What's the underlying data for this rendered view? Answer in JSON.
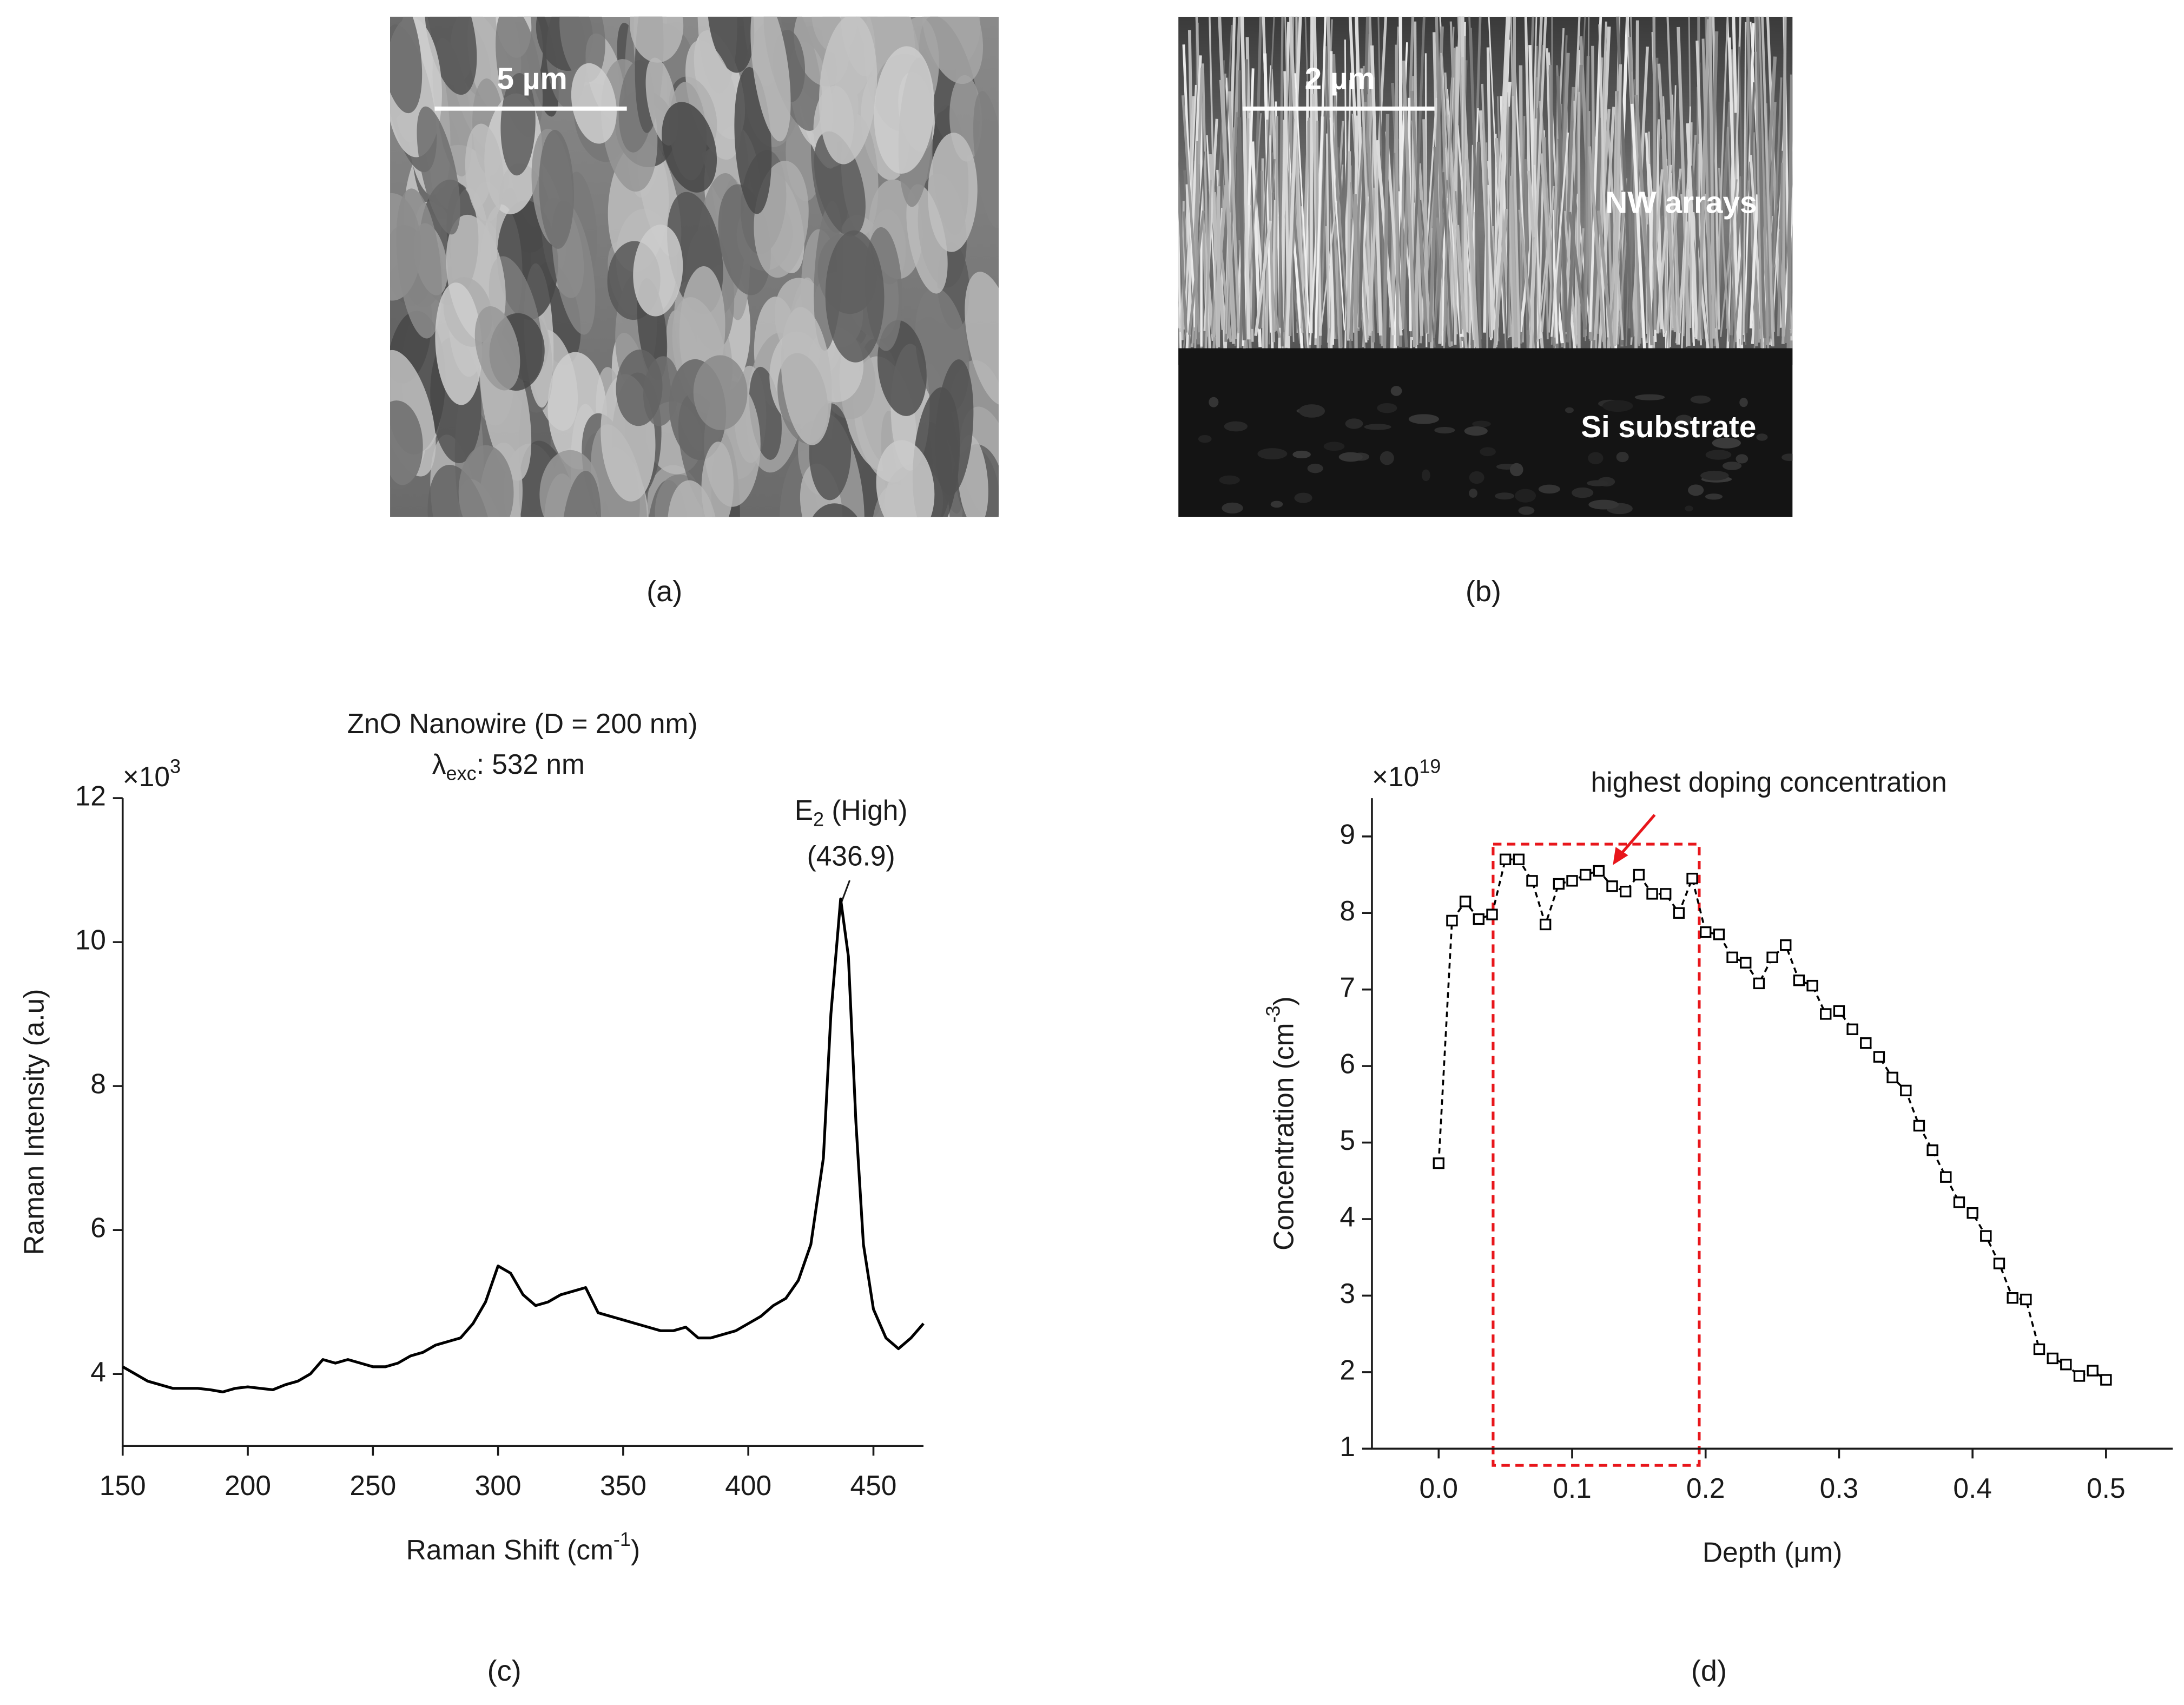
{
  "panels": [
    {
      "label": "(a)",
      "scale_bar": "5 µm"
    },
    {
      "label": "(b)",
      "scale_bar": "2 µm",
      "regions": [
        "NW arrays",
        "Si substrate"
      ]
    },
    {
      "label": "(c)"
    },
    {
      "label": "(d)"
    }
  ],
  "chart_data": [
    {
      "type": "line",
      "title": "ZnO Nanowire (D = 200 nm)",
      "subtitle": [
        "λ",
        "exc",
        ": 532 nm"
      ],
      "x_label": [
        "Raman Shift (cm",
        "-1",
        ")"
      ],
      "y_label": "Raman Intensity (a.u)",
      "y_multiplier": [
        "×10",
        "3"
      ],
      "annotation": {
        "text": [
          "E",
          "2",
          " (High)"
        ],
        "value_label": "(436.9)"
      },
      "color": "#000000",
      "x": [
        150,
        155,
        160,
        165,
        170,
        175,
        180,
        185,
        190,
        195,
        200,
        205,
        210,
        215,
        220,
        225,
        230,
        235,
        240,
        245,
        250,
        255,
        260,
        265,
        270,
        275,
        280,
        285,
        290,
        295,
        300,
        305,
        310,
        315,
        320,
        325,
        330,
        335,
        340,
        345,
        350,
        355,
        360,
        365,
        370,
        375,
        380,
        385,
        390,
        395,
        400,
        405,
        410,
        415,
        420,
        425,
        430,
        433,
        436.9,
        440,
        443,
        446,
        450,
        455,
        460,
        465,
        470
      ],
      "values": [
        4.1,
        4.0,
        3.9,
        3.85,
        3.8,
        3.8,
        3.8,
        3.78,
        3.75,
        3.8,
        3.82,
        3.8,
        3.78,
        3.85,
        3.9,
        4.0,
        4.2,
        4.15,
        4.2,
        4.15,
        4.1,
        4.1,
        4.15,
        4.25,
        4.3,
        4.4,
        4.45,
        4.5,
        4.7,
        5.0,
        5.5,
        5.4,
        5.1,
        4.95,
        5.0,
        5.1,
        5.15,
        5.2,
        4.85,
        4.8,
        4.75,
        4.7,
        4.65,
        4.6,
        4.6,
        4.65,
        4.5,
        4.5,
        4.55,
        4.6,
        4.7,
        4.8,
        4.95,
        5.05,
        5.3,
        5.8,
        7.0,
        9.0,
        10.6,
        9.8,
        7.5,
        5.8,
        4.9,
        4.5,
        4.35,
        4.5,
        4.7
      ],
      "xlim": [
        150,
        470
      ],
      "ylim": [
        3,
        12
      ],
      "xticks": [
        150,
        200,
        250,
        300,
        350,
        400,
        450
      ],
      "yticks": [
        4,
        6,
        8,
        10,
        12
      ]
    },
    {
      "type": "line",
      "marker": "square",
      "linestyle": "dashed",
      "x_label": "Depth (μm)",
      "y_label": [
        "Concentration (cm",
        "-3",
        ")"
      ],
      "y_multiplier": [
        "×10",
        "19"
      ],
      "annotation": "highest doping concentration",
      "color": "#000000",
      "highlight_color": "#e8161b",
      "x": [
        0,
        0.01,
        0.02,
        0.03,
        0.04,
        0.05,
        0.06,
        0.07,
        0.08,
        0.09,
        0.1,
        0.11,
        0.12,
        0.13,
        0.14,
        0.15,
        0.16,
        0.17,
        0.18,
        0.19,
        0.2,
        0.21,
        0.22,
        0.23,
        0.24,
        0.25,
        0.26,
        0.27,
        0.28,
        0.29,
        0.3,
        0.31,
        0.32,
        0.33,
        0.34,
        0.35,
        0.36,
        0.37,
        0.38,
        0.39,
        0.4,
        0.41,
        0.42,
        0.43,
        0.44,
        0.45,
        0.46,
        0.47,
        0.48,
        0.49,
        0.5
      ],
      "values": [
        4.73,
        7.9,
        8.15,
        7.92,
        7.98,
        8.7,
        8.7,
        8.42,
        7.85,
        8.38,
        8.42,
        8.5,
        8.55,
        8.35,
        8.28,
        8.5,
        8.25,
        8.25,
        8.0,
        8.45,
        7.75,
        7.72,
        7.42,
        7.35,
        7.08,
        7.42,
        7.58,
        7.12,
        7.05,
        6.68,
        6.72,
        6.48,
        6.3,
        6.12,
        5.85,
        5.68,
        5.22,
        4.9,
        4.55,
        4.22,
        4.08,
        3.78,
        3.42,
        2.97,
        2.95,
        2.3,
        2.18,
        2.1,
        1.95,
        2.02,
        1.9
      ],
      "xlim": [
        -0.05,
        0.55
      ],
      "ylim": [
        1,
        9.5
      ],
      "xticks": [
        {
          "value": 0,
          "label": "0.0"
        },
        0.1,
        0.2,
        0.3,
        0.4,
        0.5
      ],
      "yticks": [
        1,
        2,
        3,
        4,
        5,
        6,
        7,
        8,
        9
      ]
    }
  ]
}
